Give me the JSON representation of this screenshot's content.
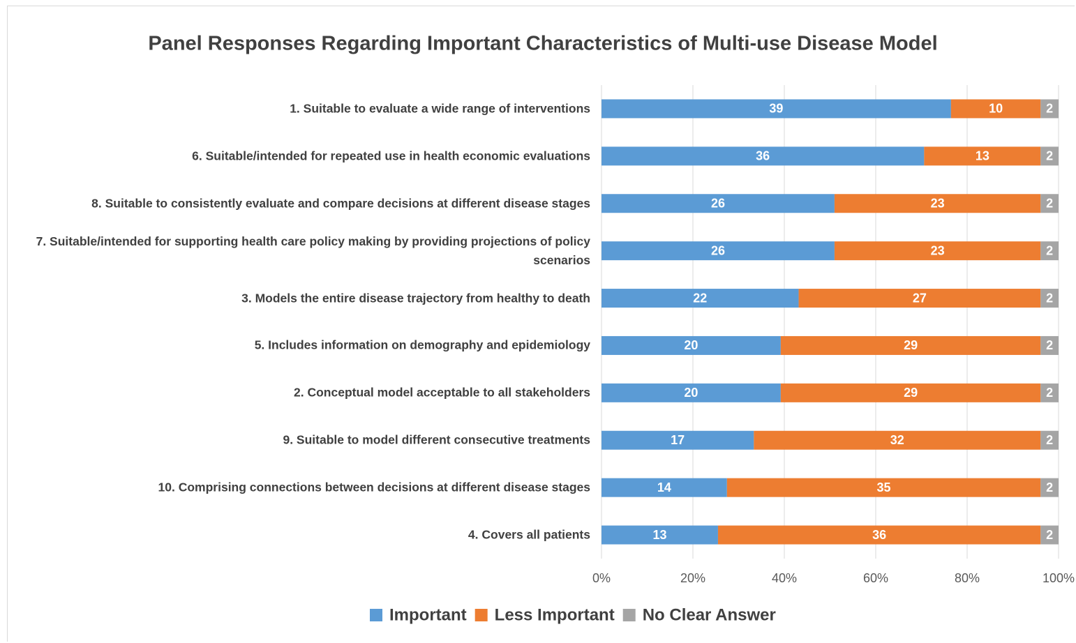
{
  "chart_data": {
    "type": "bar",
    "orientation": "horizontal",
    "stacked": "percent",
    "title": "Panel Responses Regarding Important Characteristics of Multi-use Disease Model",
    "categories": [
      "1. Suitable to evaluate a wide range of interventions",
      "6. Suitable/intended for repeated use in health economic evaluations",
      "8. Suitable to consistently evaluate and compare decisions at different disease stages",
      "7. Suitable/intended for supporting health care policy making by providing projections of policy scenarios",
      "3. Models the entire disease trajectory from healthy to death",
      "5. Includes information on demography and epidemiology",
      "2. Conceptual model acceptable to all stakeholders",
      "9. Suitable to model different consecutive treatments",
      "10. Comprising connections between decisions at different disease stages",
      "4. Covers all patients"
    ],
    "series": [
      {
        "name": "Important",
        "color": "#5b9bd5",
        "values": [
          39,
          36,
          26,
          26,
          22,
          20,
          20,
          17,
          14,
          13
        ]
      },
      {
        "name": "Less Important",
        "color": "#ed7d31",
        "values": [
          10,
          13,
          23,
          23,
          27,
          29,
          29,
          32,
          35,
          36
        ]
      },
      {
        "name": "No Clear Answer",
        "color": "#a5a5a5",
        "values": [
          2,
          2,
          2,
          2,
          2,
          2,
          2,
          2,
          2,
          2
        ]
      }
    ],
    "xlim": [
      0,
      100
    ],
    "xticks": [
      {
        "value": 0,
        "label": "0%"
      },
      {
        "value": 20,
        "label": "20%"
      },
      {
        "value": 40,
        "label": "40%"
      },
      {
        "value": 60,
        "label": "60%"
      },
      {
        "value": 80,
        "label": "80%"
      },
      {
        "value": 100,
        "label": "100%"
      }
    ],
    "grid": true,
    "legend": "bottom"
  }
}
